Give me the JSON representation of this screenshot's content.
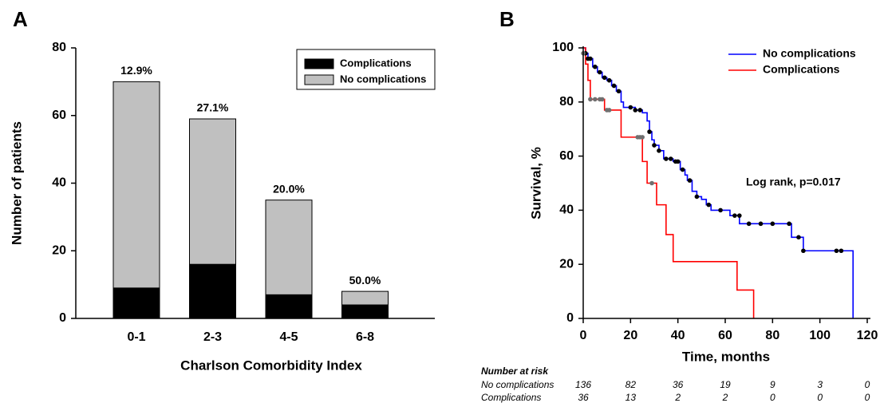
{
  "chart_data": [
    {
      "type": "stacked_bar",
      "panel_label": "A",
      "categories": [
        "0-1",
        "2-3",
        "4-5",
        "6-8"
      ],
      "series": [
        {
          "name": "Complications",
          "color": "#000000",
          "values": [
            9,
            16,
            7,
            4
          ]
        },
        {
          "name": "No complications",
          "color": "#c0c0c0",
          "values": [
            61,
            43,
            28,
            4
          ]
        }
      ],
      "percent_labels": {
        "values": [
          12.9,
          27.1,
          20.0,
          50.0
        ],
        "value_labels": [
          "12.9%",
          "27.1%",
          "20.0%",
          "50.0%"
        ]
      },
      "x_label": "Charlson Comorbidity Index",
      "y_label": "Number of patients",
      "ylim": [
        0,
        80
      ],
      "yticks": [
        0,
        20,
        40,
        60,
        80
      ],
      "legend": "upper right"
    },
    {
      "type": "step",
      "panel_label": "B",
      "series": [
        {
          "name": "No complications",
          "color": "#0000ff",
          "censor_color": "#000000",
          "x": [
            0,
            1,
            2,
            4,
            6,
            8,
            10,
            12,
            14,
            16,
            17,
            22,
            25,
            27,
            28,
            29,
            30,
            32,
            34,
            38,
            41,
            43,
            44,
            46,
            48,
            50,
            52,
            54,
            62,
            66,
            88,
            93,
            114
          ],
          "values": [
            100,
            98,
            96,
            93,
            91,
            89,
            88,
            86,
            84,
            80,
            78,
            77,
            76,
            73,
            69,
            66,
            64,
            62,
            59,
            58,
            55,
            53,
            51,
            47,
            45,
            44,
            42,
            40,
            38,
            35,
            30,
            25,
            0
          ],
          "censored_x": [
            1,
            2,
            3,
            5,
            7,
            9,
            11,
            13,
            15,
            20,
            22,
            24,
            28,
            30,
            32,
            35,
            37,
            39,
            40,
            42,
            45,
            48,
            53,
            58,
            64,
            66,
            70,
            75,
            80,
            87,
            91,
            93,
            107,
            109
          ],
          "censored_values": [
            98,
            96,
            96,
            93,
            91,
            89,
            88,
            86,
            84,
            78,
            77,
            77,
            69,
            64,
            62,
            59,
            59,
            58,
            58,
            55,
            51,
            45,
            42,
            40,
            38,
            38,
            35,
            35,
            35,
            35,
            30,
            25,
            25,
            25
          ]
        },
        {
          "name": "Complications",
          "color": "#ff0000",
          "censor_color": "#707070",
          "x": [
            0,
            1,
            2,
            3,
            9,
            16,
            25,
            27,
            31,
            35,
            38,
            65,
            72
          ],
          "values": [
            100,
            94,
            88,
            81,
            77,
            67,
            58,
            50,
            42,
            31,
            21,
            10.5,
            0
          ],
          "censored_x": [
            0,
            3,
            5,
            7,
            8,
            10,
            11,
            23,
            24,
            25,
            29
          ],
          "censored_values": [
            98,
            81,
            81,
            81,
            81,
            77,
            77,
            67,
            67,
            67,
            50
          ]
        }
      ],
      "annotation": "Log rank, p=0.017",
      "x_label": "Time, months",
      "y_label": "Survival, %",
      "xlim": [
        0,
        120
      ],
      "xticks": [
        0,
        20,
        40,
        60,
        80,
        100,
        120
      ],
      "ylim": [
        0,
        100
      ],
      "yticks": [
        0,
        20,
        40,
        60,
        80,
        100
      ],
      "legend": "upper right",
      "risk_table": {
        "title": "Number at risk",
        "rows": [
          [
            136,
            82,
            36,
            19,
            9,
            3,
            0
          ],
          [
            36,
            13,
            2,
            2,
            0,
            0,
            0
          ]
        ]
      }
    }
  ]
}
